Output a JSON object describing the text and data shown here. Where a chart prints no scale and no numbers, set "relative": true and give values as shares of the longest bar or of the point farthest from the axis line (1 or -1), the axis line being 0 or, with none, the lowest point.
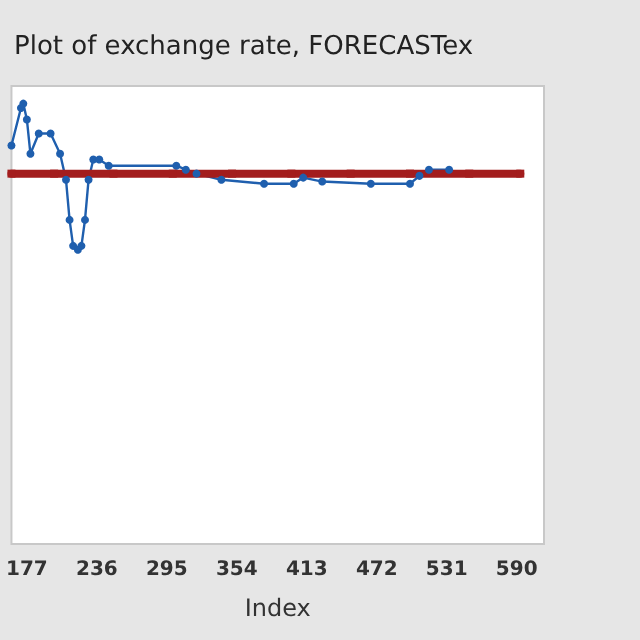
{
  "chart_data": {
    "type": "line",
    "title": "Plot of exchange rate, FORECASTex",
    "xlabel": "Index",
    "relative": true,
    "grid": false,
    "xlim": [
      164,
      613
    ],
    "xticks": [
      177,
      236,
      295,
      354,
      413,
      472,
      531,
      590
    ],
    "series": [
      {
        "color": "#1f5fae",
        "marker": "circle",
        "x": [
          164,
          172,
          174,
          177,
          180,
          187,
          197,
          205,
          210,
          213,
          216,
          220,
          223,
          226,
          229,
          233,
          238,
          246,
          303,
          311,
          320,
          341,
          377,
          402,
          410,
          426,
          467,
          500,
          508,
          516,
          533
        ],
        "values": [
          0.905,
          0.99,
          1,
          0.964,
          0.886,
          0.932,
          0.932,
          0.886,
          0.827,
          0.736,
          0.677,
          0.668,
          0.677,
          0.736,
          0.827,
          0.873,
          0.873,
          0.859,
          0.859,
          0.85,
          0.841,
          0.827,
          0.818,
          0.818,
          0.832,
          0.823,
          0.818,
          0.818,
          0.836,
          0.85,
          0.85
        ]
      },
      {
        "color": "#a31d1d",
        "marker": "square",
        "x": [
          164,
          200,
          250,
          300,
          350,
          400,
          450,
          500,
          550,
          593
        ],
        "values": [
          0.841,
          0.841,
          0.841,
          0.841,
          0.841,
          0.841,
          0.841,
          0.841,
          0.841,
          0.841
        ]
      }
    ]
  }
}
